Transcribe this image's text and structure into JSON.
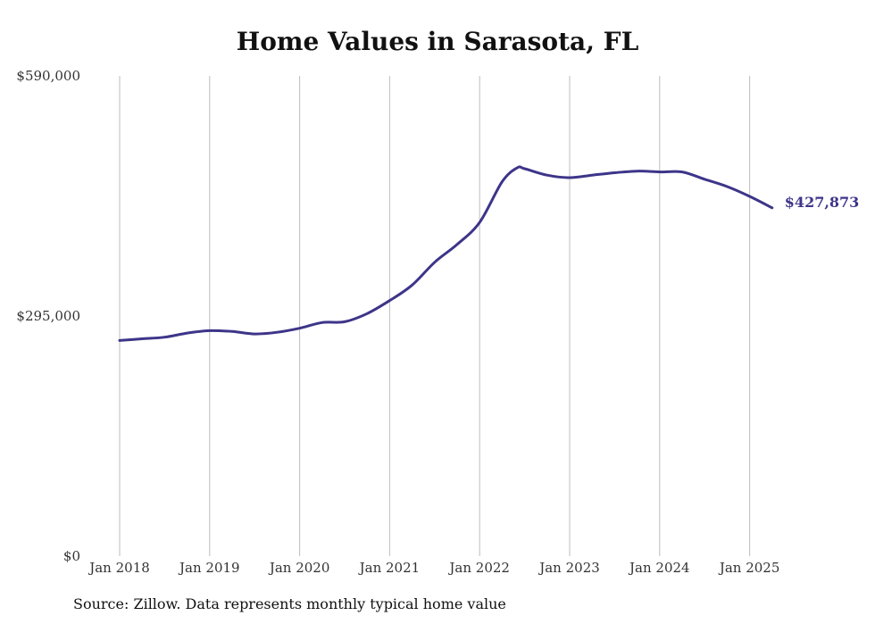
{
  "chart_data": {
    "type": "line",
    "title": "Home Values in Sarasota, FL",
    "xlabel": "",
    "ylabel": "",
    "x_ticks": [
      "Jan 2018",
      "Jan 2019",
      "Jan 2020",
      "Jan 2021",
      "Jan 2022",
      "Jan 2023",
      "Jan 2024",
      "Jan 2025"
    ],
    "y_ticks": [
      "$590,000",
      "$295,000",
      "$0"
    ],
    "ylim": [
      0,
      590000
    ],
    "grid": "vertical",
    "line_color": "#3d3589",
    "end_label": "$427,873",
    "x": [
      "2018-01",
      "2018-04",
      "2018-07",
      "2018-10",
      "2019-01",
      "2019-04",
      "2019-07",
      "2019-10",
      "2020-01",
      "2020-04",
      "2020-07",
      "2020-10",
      "2021-01",
      "2021-04",
      "2021-07",
      "2021-10",
      "2022-01",
      "2022-04",
      "2022-06",
      "2022-07",
      "2022-10",
      "2023-01",
      "2023-04",
      "2023-07",
      "2023-10",
      "2024-01",
      "2024-04",
      "2024-07",
      "2024-10",
      "2025-01",
      "2025-04"
    ],
    "values": [
      265000,
      267000,
      269000,
      274000,
      277000,
      276000,
      273000,
      275000,
      280000,
      287000,
      288000,
      298000,
      314000,
      333000,
      361000,
      383000,
      410000,
      460000,
      477000,
      476000,
      468000,
      465000,
      468000,
      471000,
      473000,
      472000,
      472000,
      463000,
      454000,
      442000,
      427873
    ]
  },
  "source": "Source: Zillow. Data represents monthly typical home value"
}
